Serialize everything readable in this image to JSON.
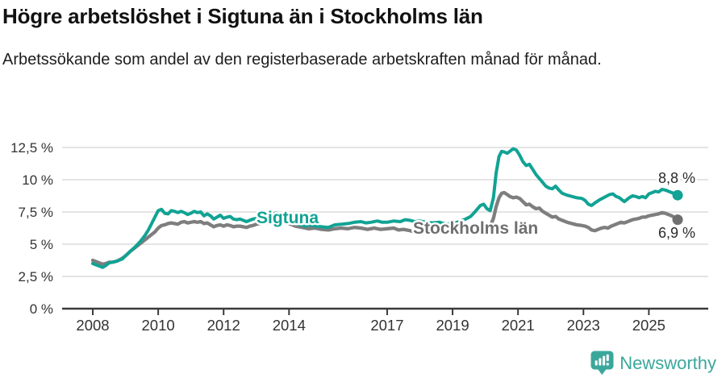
{
  "header": {
    "title": "Högre arbetslöshet i Sigtuna än i Stockholms län",
    "subtitle": "Arbetssökande som andel av den registerbaserade arbetskraften månad för månad."
  },
  "branding": {
    "logo_text": "Newsworthy",
    "logo_color": "#3ba79c",
    "logo_icon": "bar-chart-speech-bubble-icon"
  },
  "chart_data": {
    "type": "line",
    "title": "Högre arbetslöshet i Sigtuna än i Stockholms län",
    "subtitle": "Arbetssökande som andel av den registerbaserade arbetskraften månad för månad.",
    "xlabel": "",
    "ylabel": "",
    "x_unit": "year (monthly data)",
    "y_unit": "percent",
    "xlim": [
      2007.5,
      2026.3
    ],
    "ylim": [
      0,
      13.5
    ],
    "grid": "horizontal",
    "legend_position": "inline-labels",
    "x_ticks": {
      "values": [
        2008,
        2010,
        2012,
        2014,
        2017,
        2019,
        2021,
        2023,
        2025
      ],
      "labels": [
        "2008",
        "2010",
        "2012",
        "2014",
        "2017",
        "2019",
        "2021",
        "2023",
        "2025"
      ]
    },
    "y_ticks": {
      "values": [
        0,
        2.5,
        5,
        7.5,
        10,
        12.5
      ],
      "labels": [
        "0 %",
        "2,5 %",
        "5 %",
        "7,5 %",
        "10 %",
        "12,5 %"
      ]
    },
    "end_labels": {
      "sigtuna": "8,8 %",
      "stockholm": "6,9 %"
    },
    "colors": {
      "sigtuna": "#11a394",
      "stockholm": "#7e7e7e",
      "stockholm_label": "#6f6f6f",
      "grid": "#dcdcdc",
      "axis": "#3a3a3a",
      "tick_text": "#333333",
      "end_label_text": "#2a2a2a"
    },
    "series": [
      {
        "name": "Sigtuna",
        "color": "#11a394",
        "end_value": 8.8,
        "points": [
          [
            2008.0,
            3.5
          ],
          [
            2008.1,
            3.4
          ],
          [
            2008.2,
            3.3
          ],
          [
            2008.3,
            3.2
          ],
          [
            2008.4,
            3.35
          ],
          [
            2008.5,
            3.55
          ],
          [
            2008.6,
            3.6
          ],
          [
            2008.75,
            3.7
          ],
          [
            2008.9,
            3.85
          ],
          [
            2009.0,
            4.1
          ],
          [
            2009.15,
            4.45
          ],
          [
            2009.3,
            4.8
          ],
          [
            2009.45,
            5.2
          ],
          [
            2009.6,
            5.7
          ],
          [
            2009.7,
            6.1
          ],
          [
            2009.8,
            6.6
          ],
          [
            2009.9,
            7.1
          ],
          [
            2010.0,
            7.6
          ],
          [
            2010.1,
            7.7
          ],
          [
            2010.2,
            7.4
          ],
          [
            2010.3,
            7.35
          ],
          [
            2010.4,
            7.6
          ],
          [
            2010.5,
            7.55
          ],
          [
            2010.6,
            7.45
          ],
          [
            2010.7,
            7.55
          ],
          [
            2010.8,
            7.45
          ],
          [
            2010.9,
            7.3
          ],
          [
            2011.0,
            7.4
          ],
          [
            2011.1,
            7.55
          ],
          [
            2011.2,
            7.45
          ],
          [
            2011.3,
            7.5
          ],
          [
            2011.4,
            7.2
          ],
          [
            2011.5,
            7.35
          ],
          [
            2011.6,
            7.2
          ],
          [
            2011.7,
            6.95
          ],
          [
            2011.8,
            7.1
          ],
          [
            2011.9,
            7.25
          ],
          [
            2012.0,
            7.0
          ],
          [
            2012.1,
            7.1
          ],
          [
            2012.2,
            7.15
          ],
          [
            2012.3,
            6.95
          ],
          [
            2012.4,
            6.9
          ],
          [
            2012.5,
            6.95
          ],
          [
            2012.6,
            6.85
          ],
          [
            2012.7,
            6.75
          ],
          [
            2012.8,
            6.85
          ],
          [
            2012.9,
            6.95
          ],
          [
            2013.0,
            7.0
          ],
          [
            2013.2,
            7.1
          ],
          [
            2013.4,
            7.25
          ],
          [
            2013.6,
            7.4
          ],
          [
            2013.8,
            7.3
          ],
          [
            2014.0,
            6.9
          ],
          [
            2014.2,
            6.6
          ],
          [
            2014.35,
            6.5
          ],
          [
            2014.5,
            6.4
          ],
          [
            2014.65,
            6.5
          ],
          [
            2014.8,
            6.4
          ],
          [
            2015.0,
            6.35
          ],
          [
            2015.2,
            6.3
          ],
          [
            2015.4,
            6.5
          ],
          [
            2015.6,
            6.55
          ],
          [
            2015.8,
            6.6
          ],
          [
            2016.0,
            6.7
          ],
          [
            2016.2,
            6.75
          ],
          [
            2016.35,
            6.65
          ],
          [
            2016.5,
            6.7
          ],
          [
            2016.7,
            6.8
          ],
          [
            2016.85,
            6.7
          ],
          [
            2017.0,
            6.7
          ],
          [
            2017.2,
            6.8
          ],
          [
            2017.4,
            6.75
          ],
          [
            2017.55,
            6.9
          ],
          [
            2017.7,
            6.85
          ],
          [
            2017.85,
            6.75
          ],
          [
            2018.0,
            6.8
          ],
          [
            2018.2,
            6.7
          ],
          [
            2018.4,
            6.65
          ],
          [
            2018.6,
            6.7
          ],
          [
            2018.8,
            6.55
          ],
          [
            2019.0,
            6.6
          ],
          [
            2019.2,
            6.75
          ],
          [
            2019.4,
            6.95
          ],
          [
            2019.55,
            7.15
          ],
          [
            2019.7,
            7.55
          ],
          [
            2019.85,
            8.0
          ],
          [
            2019.95,
            8.1
          ],
          [
            2020.05,
            7.75
          ],
          [
            2020.15,
            7.6
          ],
          [
            2020.25,
            8.6
          ],
          [
            2020.33,
            10.5
          ],
          [
            2020.42,
            11.8
          ],
          [
            2020.5,
            12.2
          ],
          [
            2020.58,
            12.15
          ],
          [
            2020.67,
            12.05
          ],
          [
            2020.75,
            12.2
          ],
          [
            2020.85,
            12.4
          ],
          [
            2020.95,
            12.3
          ],
          [
            2021.05,
            11.9
          ],
          [
            2021.15,
            11.4
          ],
          [
            2021.25,
            11.1
          ],
          [
            2021.35,
            11.2
          ],
          [
            2021.45,
            10.8
          ],
          [
            2021.55,
            10.4
          ],
          [
            2021.65,
            10.1
          ],
          [
            2021.75,
            9.8
          ],
          [
            2021.85,
            9.5
          ],
          [
            2021.95,
            9.35
          ],
          [
            2022.05,
            9.3
          ],
          [
            2022.15,
            9.5
          ],
          [
            2022.25,
            9.2
          ],
          [
            2022.35,
            8.95
          ],
          [
            2022.5,
            8.8
          ],
          [
            2022.65,
            8.7
          ],
          [
            2022.8,
            8.6
          ],
          [
            2022.95,
            8.55
          ],
          [
            2023.05,
            8.4
          ],
          [
            2023.15,
            8.1
          ],
          [
            2023.25,
            8.0
          ],
          [
            2023.35,
            8.2
          ],
          [
            2023.5,
            8.45
          ],
          [
            2023.65,
            8.65
          ],
          [
            2023.8,
            8.85
          ],
          [
            2023.9,
            8.9
          ],
          [
            2024.0,
            8.7
          ],
          [
            2024.1,
            8.6
          ],
          [
            2024.25,
            8.3
          ],
          [
            2024.4,
            8.6
          ],
          [
            2024.5,
            8.75
          ],
          [
            2024.6,
            8.7
          ],
          [
            2024.7,
            8.6
          ],
          [
            2024.8,
            8.7
          ],
          [
            2024.9,
            8.6
          ],
          [
            2025.0,
            8.9
          ],
          [
            2025.1,
            9.0
          ],
          [
            2025.2,
            9.1
          ],
          [
            2025.3,
            9.05
          ],
          [
            2025.4,
            9.25
          ],
          [
            2025.5,
            9.2
          ],
          [
            2025.6,
            9.1
          ],
          [
            2025.7,
            9.0
          ],
          [
            2025.8,
            8.9
          ],
          [
            2025.88,
            8.8
          ]
        ]
      },
      {
        "name": "Stockholms län",
        "color": "#7e7e7e",
        "end_value": 6.9,
        "points": [
          [
            2008.0,
            3.75
          ],
          [
            2008.1,
            3.65
          ],
          [
            2008.2,
            3.55
          ],
          [
            2008.3,
            3.45
          ],
          [
            2008.4,
            3.5
          ],
          [
            2008.5,
            3.6
          ],
          [
            2008.6,
            3.6
          ],
          [
            2008.75,
            3.7
          ],
          [
            2008.9,
            3.9
          ],
          [
            2009.0,
            4.1
          ],
          [
            2009.15,
            4.45
          ],
          [
            2009.3,
            4.75
          ],
          [
            2009.45,
            5.05
          ],
          [
            2009.6,
            5.35
          ],
          [
            2009.75,
            5.65
          ],
          [
            2009.9,
            5.95
          ],
          [
            2010.0,
            6.25
          ],
          [
            2010.1,
            6.45
          ],
          [
            2010.2,
            6.5
          ],
          [
            2010.3,
            6.6
          ],
          [
            2010.4,
            6.65
          ],
          [
            2010.5,
            6.6
          ],
          [
            2010.6,
            6.55
          ],
          [
            2010.7,
            6.7
          ],
          [
            2010.8,
            6.75
          ],
          [
            2010.9,
            6.65
          ],
          [
            2011.0,
            6.7
          ],
          [
            2011.1,
            6.75
          ],
          [
            2011.2,
            6.7
          ],
          [
            2011.3,
            6.75
          ],
          [
            2011.4,
            6.6
          ],
          [
            2011.5,
            6.65
          ],
          [
            2011.6,
            6.5
          ],
          [
            2011.7,
            6.35
          ],
          [
            2011.8,
            6.45
          ],
          [
            2011.9,
            6.5
          ],
          [
            2012.0,
            6.4
          ],
          [
            2012.1,
            6.5
          ],
          [
            2012.2,
            6.45
          ],
          [
            2012.3,
            6.35
          ],
          [
            2012.4,
            6.4
          ],
          [
            2012.5,
            6.4
          ],
          [
            2012.6,
            6.35
          ],
          [
            2012.7,
            6.3
          ],
          [
            2012.8,
            6.4
          ],
          [
            2012.9,
            6.45
          ],
          [
            2013.0,
            6.55
          ],
          [
            2013.2,
            6.65
          ],
          [
            2013.4,
            6.7
          ],
          [
            2013.6,
            6.8
          ],
          [
            2013.8,
            6.75
          ],
          [
            2014.0,
            6.6
          ],
          [
            2014.2,
            6.4
          ],
          [
            2014.4,
            6.3
          ],
          [
            2014.6,
            6.2
          ],
          [
            2014.8,
            6.25
          ],
          [
            2015.0,
            6.15
          ],
          [
            2015.2,
            6.1
          ],
          [
            2015.4,
            6.2
          ],
          [
            2015.6,
            6.25
          ],
          [
            2015.8,
            6.2
          ],
          [
            2016.0,
            6.3
          ],
          [
            2016.2,
            6.25
          ],
          [
            2016.4,
            6.15
          ],
          [
            2016.6,
            6.25
          ],
          [
            2016.8,
            6.15
          ],
          [
            2017.0,
            6.2
          ],
          [
            2017.2,
            6.25
          ],
          [
            2017.35,
            6.1
          ],
          [
            2017.5,
            6.15
          ],
          [
            2017.7,
            6.05
          ],
          [
            2017.85,
            5.95
          ],
          [
            2018.0,
            6.0
          ],
          [
            2018.2,
            6.05
          ],
          [
            2018.4,
            6.0
          ],
          [
            2018.6,
            5.95
          ],
          [
            2018.8,
            6.0
          ],
          [
            2019.0,
            6.0
          ],
          [
            2019.2,
            6.1
          ],
          [
            2019.4,
            6.15
          ],
          [
            2019.6,
            6.25
          ],
          [
            2019.8,
            6.4
          ],
          [
            2019.95,
            6.5
          ],
          [
            2020.05,
            6.45
          ],
          [
            2020.15,
            6.4
          ],
          [
            2020.25,
            7.0
          ],
          [
            2020.33,
            7.9
          ],
          [
            2020.42,
            8.6
          ],
          [
            2020.5,
            8.95
          ],
          [
            2020.58,
            9.0
          ],
          [
            2020.67,
            8.85
          ],
          [
            2020.75,
            8.7
          ],
          [
            2020.85,
            8.6
          ],
          [
            2020.95,
            8.65
          ],
          [
            2021.05,
            8.55
          ],
          [
            2021.15,
            8.3
          ],
          [
            2021.25,
            8.05
          ],
          [
            2021.35,
            8.1
          ],
          [
            2021.45,
            7.9
          ],
          [
            2021.55,
            7.75
          ],
          [
            2021.65,
            7.8
          ],
          [
            2021.75,
            7.55
          ],
          [
            2021.85,
            7.4
          ],
          [
            2021.95,
            7.25
          ],
          [
            2022.05,
            7.1
          ],
          [
            2022.15,
            7.15
          ],
          [
            2022.25,
            6.95
          ],
          [
            2022.35,
            6.85
          ],
          [
            2022.5,
            6.7
          ],
          [
            2022.65,
            6.6
          ],
          [
            2022.8,
            6.5
          ],
          [
            2022.95,
            6.45
          ],
          [
            2023.05,
            6.4
          ],
          [
            2023.15,
            6.3
          ],
          [
            2023.25,
            6.1
          ],
          [
            2023.35,
            6.05
          ],
          [
            2023.45,
            6.15
          ],
          [
            2023.55,
            6.25
          ],
          [
            2023.65,
            6.3
          ],
          [
            2023.75,
            6.25
          ],
          [
            2023.85,
            6.4
          ],
          [
            2023.95,
            6.5
          ],
          [
            2024.05,
            6.6
          ],
          [
            2024.15,
            6.7
          ],
          [
            2024.25,
            6.65
          ],
          [
            2024.35,
            6.75
          ],
          [
            2024.5,
            6.9
          ],
          [
            2024.6,
            6.95
          ],
          [
            2024.7,
            7.0
          ],
          [
            2024.8,
            7.1
          ],
          [
            2024.9,
            7.1
          ],
          [
            2025.0,
            7.2
          ],
          [
            2025.1,
            7.25
          ],
          [
            2025.2,
            7.3
          ],
          [
            2025.3,
            7.35
          ],
          [
            2025.4,
            7.45
          ],
          [
            2025.5,
            7.4
          ],
          [
            2025.6,
            7.3
          ],
          [
            2025.7,
            7.2
          ],
          [
            2025.8,
            7.05
          ],
          [
            2025.88,
            6.9
          ]
        ]
      }
    ]
  }
}
